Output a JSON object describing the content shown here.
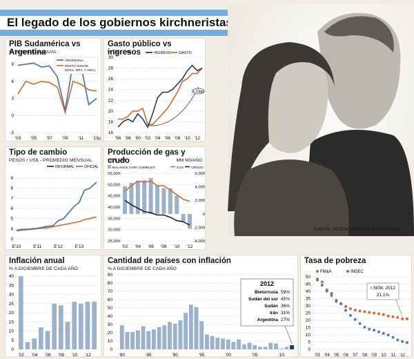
{
  "header": {
    "title": "El legado de los gobiernos kirchneristas"
  },
  "photo": {
    "caption": "FUENTE: FEDERICO MUÑOZ & ASOCIADOS"
  },
  "colors": {
    "navy": "#1f3c66",
    "orange": "#d9672a",
    "blue": "#4a7fb5",
    "bar": "#9ab2cc",
    "flag_blue": "#74acdf",
    "sun": "#e8b835"
  },
  "chart_data": [
    {
      "id": "pib",
      "type": "line",
      "title": "PIB Sudamérica vs Argentina",
      "subtitle": "% VARIACIÓN ANUAL",
      "x_ticks": [
        "'03",
        "'05",
        "'07",
        "'09",
        "'11",
        "'13p"
      ],
      "ylim": [
        -3,
        9
      ],
      "y_ticks": [
        -3,
        0,
        3,
        6,
        9
      ],
      "x": [
        2003,
        2004,
        2005,
        2006,
        2007,
        2008,
        2009,
        2010,
        2011,
        2012,
        2013
      ],
      "series": [
        {
          "name": "ARGENTINA",
          "values": [
            8.8,
            9.0,
            9.2,
            8.5,
            8.7,
            6.8,
            0.9,
            9.2,
            8.9,
            1.9,
            3.0
          ]
        },
        {
          "name": "RESTO SUDAM. (EXCL. BRA. Y VEN.)",
          "values": [
            3.8,
            6.0,
            5.5,
            6.0,
            5.8,
            5.0,
            0.5,
            6.0,
            5.5,
            4.5,
            4.3
          ]
        }
      ]
    },
    {
      "id": "gasto",
      "type": "line",
      "title": "Gasto público vs ingresos",
      "subtitle": "% DEL PIB",
      "x_ticks": [
        "'96",
        "'98",
        "'00",
        "'02",
        "'04",
        "'06",
        "'08",
        "'10",
        "'12"
      ],
      "ylim": [
        16,
        30
      ],
      "y_ticks": [
        16,
        18,
        20,
        22,
        24,
        26,
        28,
        30
      ],
      "annotation": "+12pp",
      "x": [
        1996,
        1997,
        1998,
        1999,
        2000,
        2001,
        2002,
        2003,
        2004,
        2005,
        2006,
        2007,
        2008,
        2009,
        2010,
        2011,
        2012,
        2013
      ],
      "series": [
        {
          "name": "INGRESO",
          "values": [
            17.0,
            18.0,
            18.5,
            18.0,
            19.5,
            18.5,
            17.0,
            19.5,
            22.5,
            23.5,
            23.5,
            24.0,
            25.0,
            26.0,
            27.5,
            28.5,
            27.5,
            28.0
          ]
        },
        {
          "name": "GASTO",
          "values": [
            18.5,
            18.5,
            19.0,
            20.0,
            20.0,
            20.5,
            17.5,
            17.5,
            18.5,
            19.5,
            20.5,
            22.0,
            23.5,
            25.5,
            26.0,
            27.0,
            27.0,
            28.0
          ]
        }
      ]
    },
    {
      "id": "cambio",
      "type": "line",
      "title": "Tipo de cambio",
      "subtitle": "PESOS / US$ - PROMEDIO MENSUAL",
      "x_ticks": [
        "E'10",
        "E'11",
        "E'12",
        "E'13"
      ],
      "ylim": [
        3,
        9
      ],
      "y_ticks": [
        3,
        4,
        5,
        6,
        7,
        8,
        9
      ],
      "x": [
        0,
        3,
        6,
        9,
        12,
        15,
        18,
        21,
        24,
        27,
        30,
        33,
        36,
        39,
        42,
        44,
        46
      ],
      "series": [
        {
          "name": "INFORMAL",
          "values": [
            3.85,
            3.95,
            3.95,
            4.0,
            4.05,
            4.15,
            4.25,
            4.3,
            4.8,
            5.0,
            5.6,
            6.2,
            6.6,
            7.8,
            8.0,
            8.3,
            8.6
          ]
        },
        {
          "name": "OFICIAL",
          "values": [
            3.8,
            3.85,
            3.9,
            3.95,
            4.0,
            4.05,
            4.1,
            4.2,
            4.3,
            4.4,
            4.5,
            4.6,
            4.7,
            4.9,
            5.0,
            5.1,
            5.15
          ]
        }
      ]
    },
    {
      "id": "gas",
      "type": "bar+line",
      "title": "Producción de gas y crudo",
      "subtitle_left": "US$ MM",
      "subtitle_right": "MM M3/AÑO",
      "x_ticks": [
        "'02",
        "'04",
        "'06",
        "'08",
        "'10",
        "'12"
      ],
      "ylim_left": [
        -4000,
        6000
      ],
      "y_ticks_left": [
        -4000,
        -2000,
        0,
        2000,
        4000,
        6000
      ],
      "ylim_right": [
        25000,
        55000
      ],
      "y_ticks_right": [
        25000,
        30000,
        35000,
        40000,
        45000,
        50000,
        55000
      ],
      "x": [
        2002,
        2003,
        2004,
        2005,
        2006,
        2007,
        2008,
        2009,
        2010,
        2011,
        2012
      ],
      "bars": {
        "name": "BALANCE COM. COMBUST.",
        "values": [
          4100,
          4600,
          4900,
          5000,
          5300,
          4200,
          3800,
          3800,
          2700,
          -1100,
          -2200
        ]
      },
      "series": [
        {
          "name": "GAS",
          "values": [
            47000,
            49500,
            51500,
            51000,
            51500,
            49500,
            49500,
            47500,
            45500,
            43500,
            42500
          ]
        },
        {
          "name": "CRUDO",
          "values": [
            43000,
            41000,
            39500,
            38000,
            37500,
            36500,
            36500,
            35500,
            34000,
            33500,
            32000
          ]
        }
      ]
    },
    {
      "id": "inflacion",
      "type": "bar",
      "title": "Inflación anual",
      "subtitle": "% A DICIEMBRE DE CADA AÑO",
      "x_ticks": [
        "'02",
        "'04",
        "'06",
        "'08",
        "'10",
        "'12"
      ],
      "ylim": [
        0,
        40
      ],
      "y_ticks": [
        0,
        5,
        10,
        15,
        20,
        25,
        30,
        35,
        40
      ],
      "categories": [
        "2002",
        "2003",
        "2004",
        "2005",
        "2006",
        "2007",
        "2008",
        "2009",
        "2010",
        "2011",
        "2012",
        "2013"
      ],
      "values": [
        41,
        4,
        6,
        12,
        10,
        25,
        24,
        15,
        26,
        25,
        26,
        26
      ]
    },
    {
      "id": "paises",
      "type": "bar",
      "title": "Cantidad de países con inflación",
      "subtitle": "% A DICIEMBRE DE CADA AÑO",
      "x_ticks": [
        "'80",
        "'85",
        "'90",
        "'95",
        "'00",
        "'05",
        "'10"
      ],
      "ylim": [
        0,
        90
      ],
      "y_ticks": [
        0,
        10,
        20,
        30,
        40,
        50,
        60,
        70,
        80,
        90
      ],
      "categories": [
        "1980",
        "1981",
        "1982",
        "1983",
        "1984",
        "1985",
        "1986",
        "1987",
        "1988",
        "1989",
        "1990",
        "1991",
        "1992",
        "1993",
        "1994",
        "1995",
        "1996",
        "1997",
        "1998",
        "1999",
        "2000",
        "2001",
        "2002",
        "2003",
        "2004",
        "2005",
        "2006",
        "2007",
        "2008",
        "2009",
        "2010",
        "2011",
        "2012"
      ],
      "values": [
        29,
        21,
        21,
        23,
        28,
        22,
        24,
        27,
        29,
        33,
        31,
        35,
        44,
        54,
        51,
        34,
        18,
        16,
        14,
        13,
        12,
        9,
        12,
        6,
        8,
        5,
        3,
        3,
        8,
        7,
        1,
        3,
        5
      ],
      "inset_title": "2012",
      "inset": [
        {
          "country": "Bielorrusia",
          "value": "59%"
        },
        {
          "country": "Sudán del sur",
          "value": "45%"
        },
        {
          "country": "Sudán",
          "value": "36%"
        },
        {
          "country": "Irán",
          "value": "31%"
        },
        {
          "country": "Argentina",
          "value": "27%"
        }
      ]
    },
    {
      "id": "pobreza",
      "type": "scatter",
      "title": "Tasa de pobreza",
      "x_ticks": [
        "'03",
        "'04",
        "'05",
        "'06",
        "'07",
        "'08",
        "'09",
        "'10",
        "'11",
        "'12"
      ],
      "ylim": [
        0,
        50
      ],
      "y_ticks": [
        0,
        5,
        10,
        15,
        20,
        25,
        30,
        35,
        40,
        45,
        50
      ],
      "annotation": "I SEM. 2012",
      "annotation_value": "21,1%",
      "x": [
        2003.0,
        2003.5,
        2004.0,
        2004.5,
        2005.0,
        2005.5,
        2006.0,
        2006.5,
        2007.0,
        2007.5,
        2008.0,
        2008.5,
        2009.0,
        2009.5,
        2010.0,
        2010.5,
        2011.0,
        2011.5,
        2012.0,
        2012.5
      ],
      "series": [
        {
          "name": "FM&A",
          "values": [
            48.5,
            46.5,
            41,
            37,
            33,
            31.5,
            29.5,
            28,
            27,
            26.5,
            26,
            25.5,
            25,
            24.5,
            24,
            23,
            22.5,
            22,
            21.1,
            21.0
          ]
        },
        {
          "name": "INDEC",
          "values": [
            47.8,
            44.3,
            40.2,
            38.5,
            33.8,
            31.4,
            26.9,
            23.4,
            20.6,
            17.8,
            15.3,
            13.9,
            13.2,
            12.0,
            11.0,
            9.9,
            8.3,
            6.5,
            5.4,
            4.7
          ]
        }
      ]
    }
  ]
}
